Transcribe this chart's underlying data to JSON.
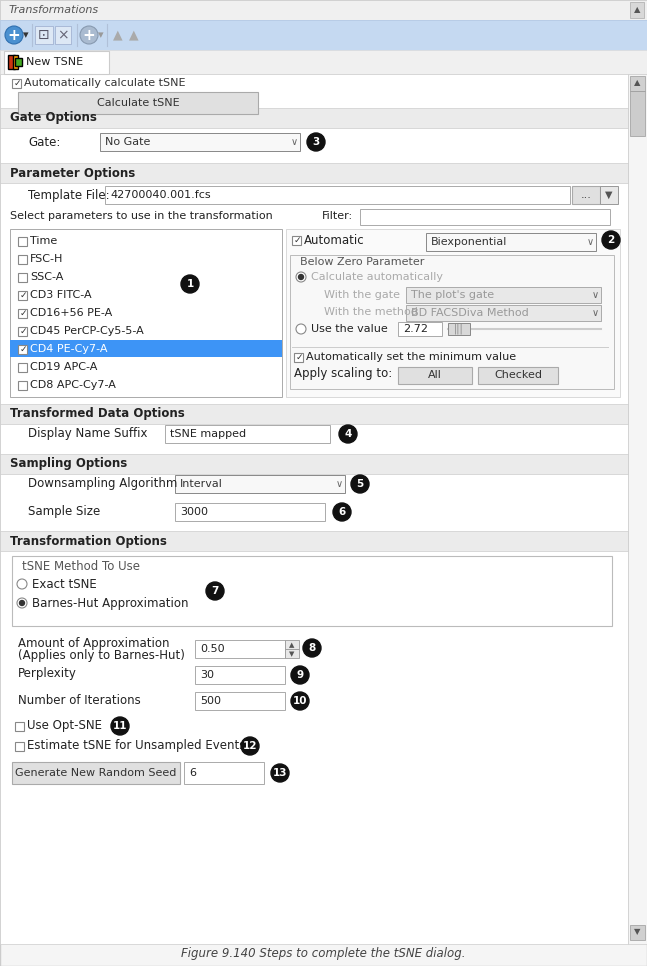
{
  "title": "Figure 9.140 Steps to complete the tSNE dialog.",
  "window_title": "Transformations",
  "tab_label": "New TSNE",
  "toolbar_bg": "#c5d9f1",
  "calculate_btn": "Calculate tSNE",
  "sections": [
    "Gate Options",
    "Parameter Options",
    "Transformed Data Options",
    "Sampling Options",
    "Transformation Options"
  ],
  "gate_label": "Gate:",
  "gate_value": "No Gate",
  "template_label": "Template File:",
  "template_value": "42700040.001.fcs",
  "filter_label": "Filter:",
  "params_label": "Select parameters to use in the transformation",
  "parameters": [
    "Time",
    "FSC-H",
    "SSC-A",
    "CD3 FITC-A",
    "CD16+56 PE-A",
    "CD45 PerCP-Cy5-5-A",
    "CD4 PE-Cy7-A",
    "CD19 APC-A",
    "CD8 APC-Cy7-A"
  ],
  "checked_params": [
    3,
    4,
    5,
    6
  ],
  "selected_param": 6,
  "auto_label": "Automatic",
  "biexp_label": "Biexponential",
  "below_zero_label": "Below Zero Parameter",
  "calc_auto_label": "Calculate automatically",
  "with_gate_label": "With the gate",
  "with_gate_value": "The plot's gate",
  "with_method_label": "With the method",
  "with_method_value": "BD FACSDiva Method",
  "use_value_label": "Use the value",
  "value_272": "2.72",
  "auto_min_label": "Automatically set the minimum value",
  "apply_scaling_label": "Apply scaling to:",
  "all_btn": "All",
  "checked_btn": "Checked",
  "display_name_label": "Display Name Suffix",
  "display_name_value": "tSNE mapped",
  "downsampling_label": "Downsampling Algorithm",
  "downsampling_value": "Interval",
  "sample_size_label": "Sample Size",
  "sample_size_value": "3000",
  "tsne_method_label": "tSNE Method To Use",
  "exact_tsne_label": "Exact tSNE",
  "barnes_label": "Barnes-Hut Approximation",
  "approx_label_1": "Amount of Approximation",
  "approx_label_2": "(Applies only to Barnes-Hut)",
  "approx_value": "0.50",
  "perplexity_label": "Perplexity",
  "perplexity_value": "30",
  "iterations_label": "Number of Iterations",
  "iterations_value": "500",
  "opt_sne_label": "Use Opt-SNE",
  "estimate_label": "Estimate tSNE for Unsampled Events",
  "gen_seed_btn": "Generate New Random Seed",
  "seed_value": "6",
  "highlight_blue": "#3d94f6",
  "section_bg": "#ebebeb",
  "content_bg": "#ffffff",
  "scrollbar_bg": "#f0f0f0"
}
